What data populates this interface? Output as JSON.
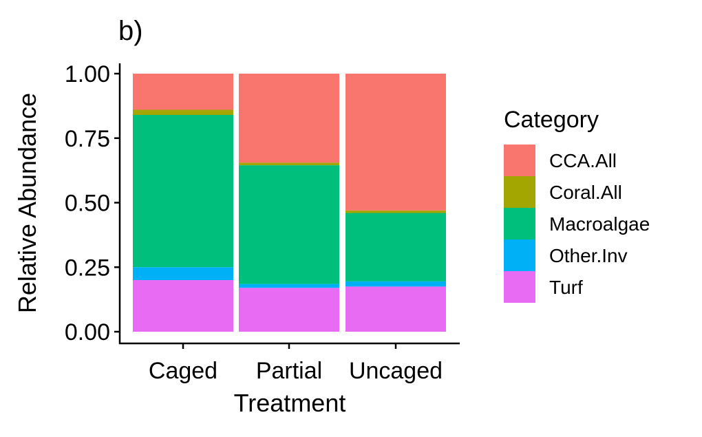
{
  "chart_data": {
    "type": "bar",
    "stacked": true,
    "title": "b)",
    "xlabel": "Treatment",
    "ylabel": "Relative Abundance",
    "ylim": [
      0,
      1
    ],
    "yticks": [
      "0.00",
      "0.25",
      "0.50",
      "0.75",
      "1.00"
    ],
    "categories": [
      "Caged",
      "Partial",
      "Uncaged"
    ],
    "legend": {
      "title": "Category",
      "position": "right"
    },
    "grid": false,
    "series": [
      {
        "name": "Turf",
        "color": "#E76BF3",
        "values": [
          0.2,
          0.17,
          0.175
        ]
      },
      {
        "name": "Other.Inv",
        "color": "#00B0F6",
        "values": [
          0.05,
          0.015,
          0.02
        ]
      },
      {
        "name": "Macroalgae",
        "color": "#00BF7D",
        "values": [
          0.59,
          0.46,
          0.265
        ]
      },
      {
        "name": "Coral.All",
        "color": "#A3A500",
        "values": [
          0.02,
          0.01,
          0.01
        ]
      },
      {
        "name": "CCA.All",
        "color": "#F8766D",
        "values": [
          0.14,
          0.345,
          0.53
        ]
      }
    ],
    "legend_order": [
      "CCA.All",
      "Coral.All",
      "Macroalgae",
      "Other.Inv",
      "Turf"
    ]
  }
}
